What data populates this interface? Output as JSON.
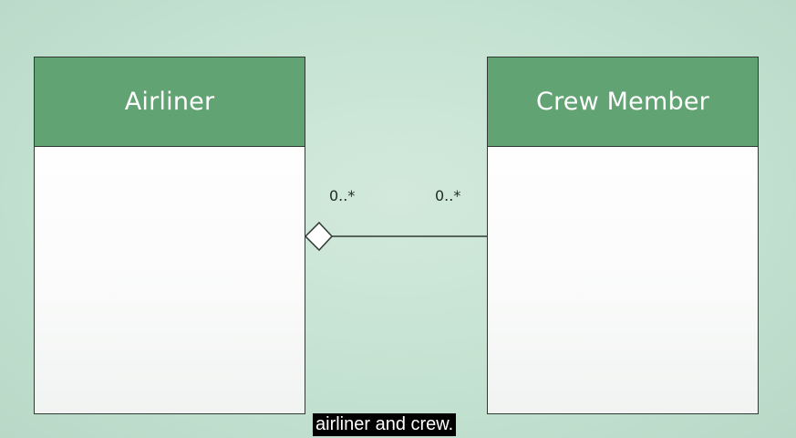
{
  "diagram": {
    "classes": [
      {
        "name": "Airliner"
      },
      {
        "name": "Crew Member"
      }
    ],
    "association": {
      "type": "aggregation",
      "left_multiplicity": "0..*",
      "right_multiplicity": "0..*"
    },
    "colors": {
      "header": "#62a374",
      "background": "#c4e2d1",
      "border": "#2f3a33"
    }
  },
  "caption": {
    "text": "airliner and crew."
  }
}
